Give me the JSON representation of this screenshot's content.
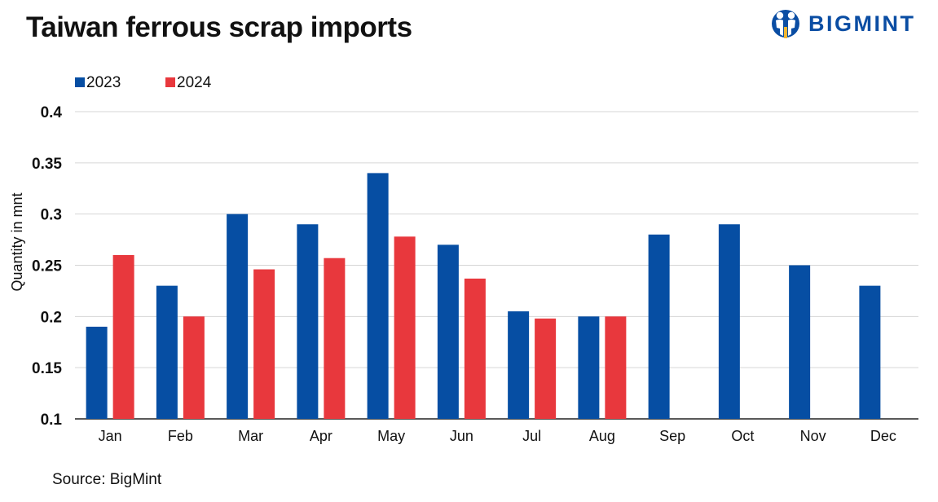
{
  "header": {
    "title": "Taiwan ferrous scrap imports",
    "logo_text": "BIGMINT",
    "logo_color": "#0a4da3"
  },
  "footer": {
    "source": "Source: BigMint"
  },
  "chart_data": {
    "type": "bar",
    "title": "Taiwan ferrous scrap imports",
    "xlabel": "",
    "ylabel": "Quantity in mnt",
    "ylim": [
      0.1,
      0.4
    ],
    "yticks": [
      "0.1",
      "0.15",
      "0.2",
      "0.25",
      "0.3",
      "0.35",
      "0.4"
    ],
    "grid": true,
    "legend_position": "top-left",
    "categories": [
      "Jan",
      "Feb",
      "Mar",
      "Apr",
      "May",
      "Jun",
      "Jul",
      "Aug",
      "Sep",
      "Oct",
      "Nov",
      "Dec"
    ],
    "series": [
      {
        "name": "2023",
        "color": "#064ea3",
        "values": [
          0.19,
          0.23,
          0.3,
          0.29,
          0.34,
          0.27,
          0.205,
          0.2,
          0.28,
          0.29,
          0.25,
          0.23
        ]
      },
      {
        "name": "2024",
        "color": "#e8383d",
        "values": [
          0.26,
          0.2,
          0.246,
          0.257,
          0.278,
          0.237,
          0.198,
          0.2,
          null,
          null,
          null,
          null
        ]
      }
    ]
  }
}
